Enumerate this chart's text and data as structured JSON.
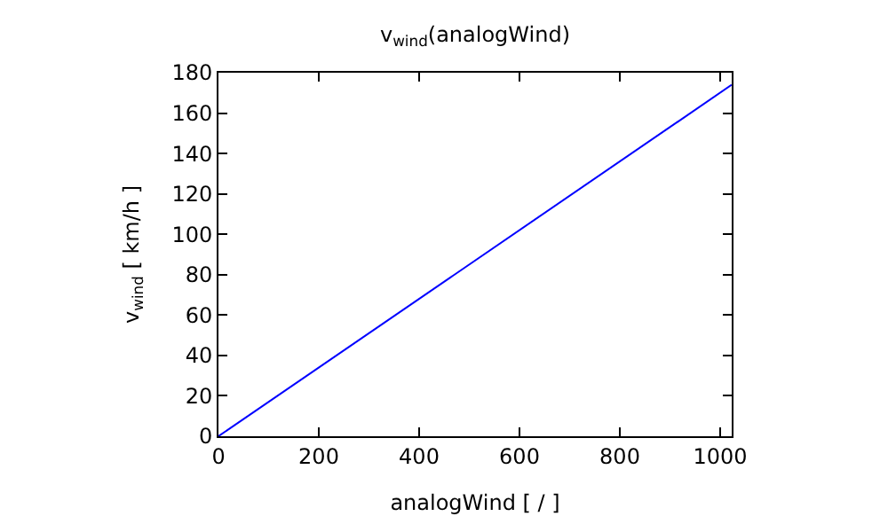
{
  "chart_data": {
    "type": "line",
    "title": "v$_{wind}$(analogWind)",
    "xlabel": "analogWind [ / ]",
    "ylabel": "v$_{wind}$ [ km/h ]",
    "x": [
      0,
      1023
    ],
    "series": [
      {
        "color": "#0000ff",
        "values": [
          0,
          174
        ]
      }
    ],
    "xlim": [
      0,
      1023
    ],
    "xticks": [
      0,
      200,
      400,
      600,
      800,
      1000
    ],
    "ylim": [
      0,
      180
    ],
    "yticks": [
      0,
      20,
      40,
      60,
      80,
      100,
      120,
      140,
      160,
      180
    ]
  }
}
